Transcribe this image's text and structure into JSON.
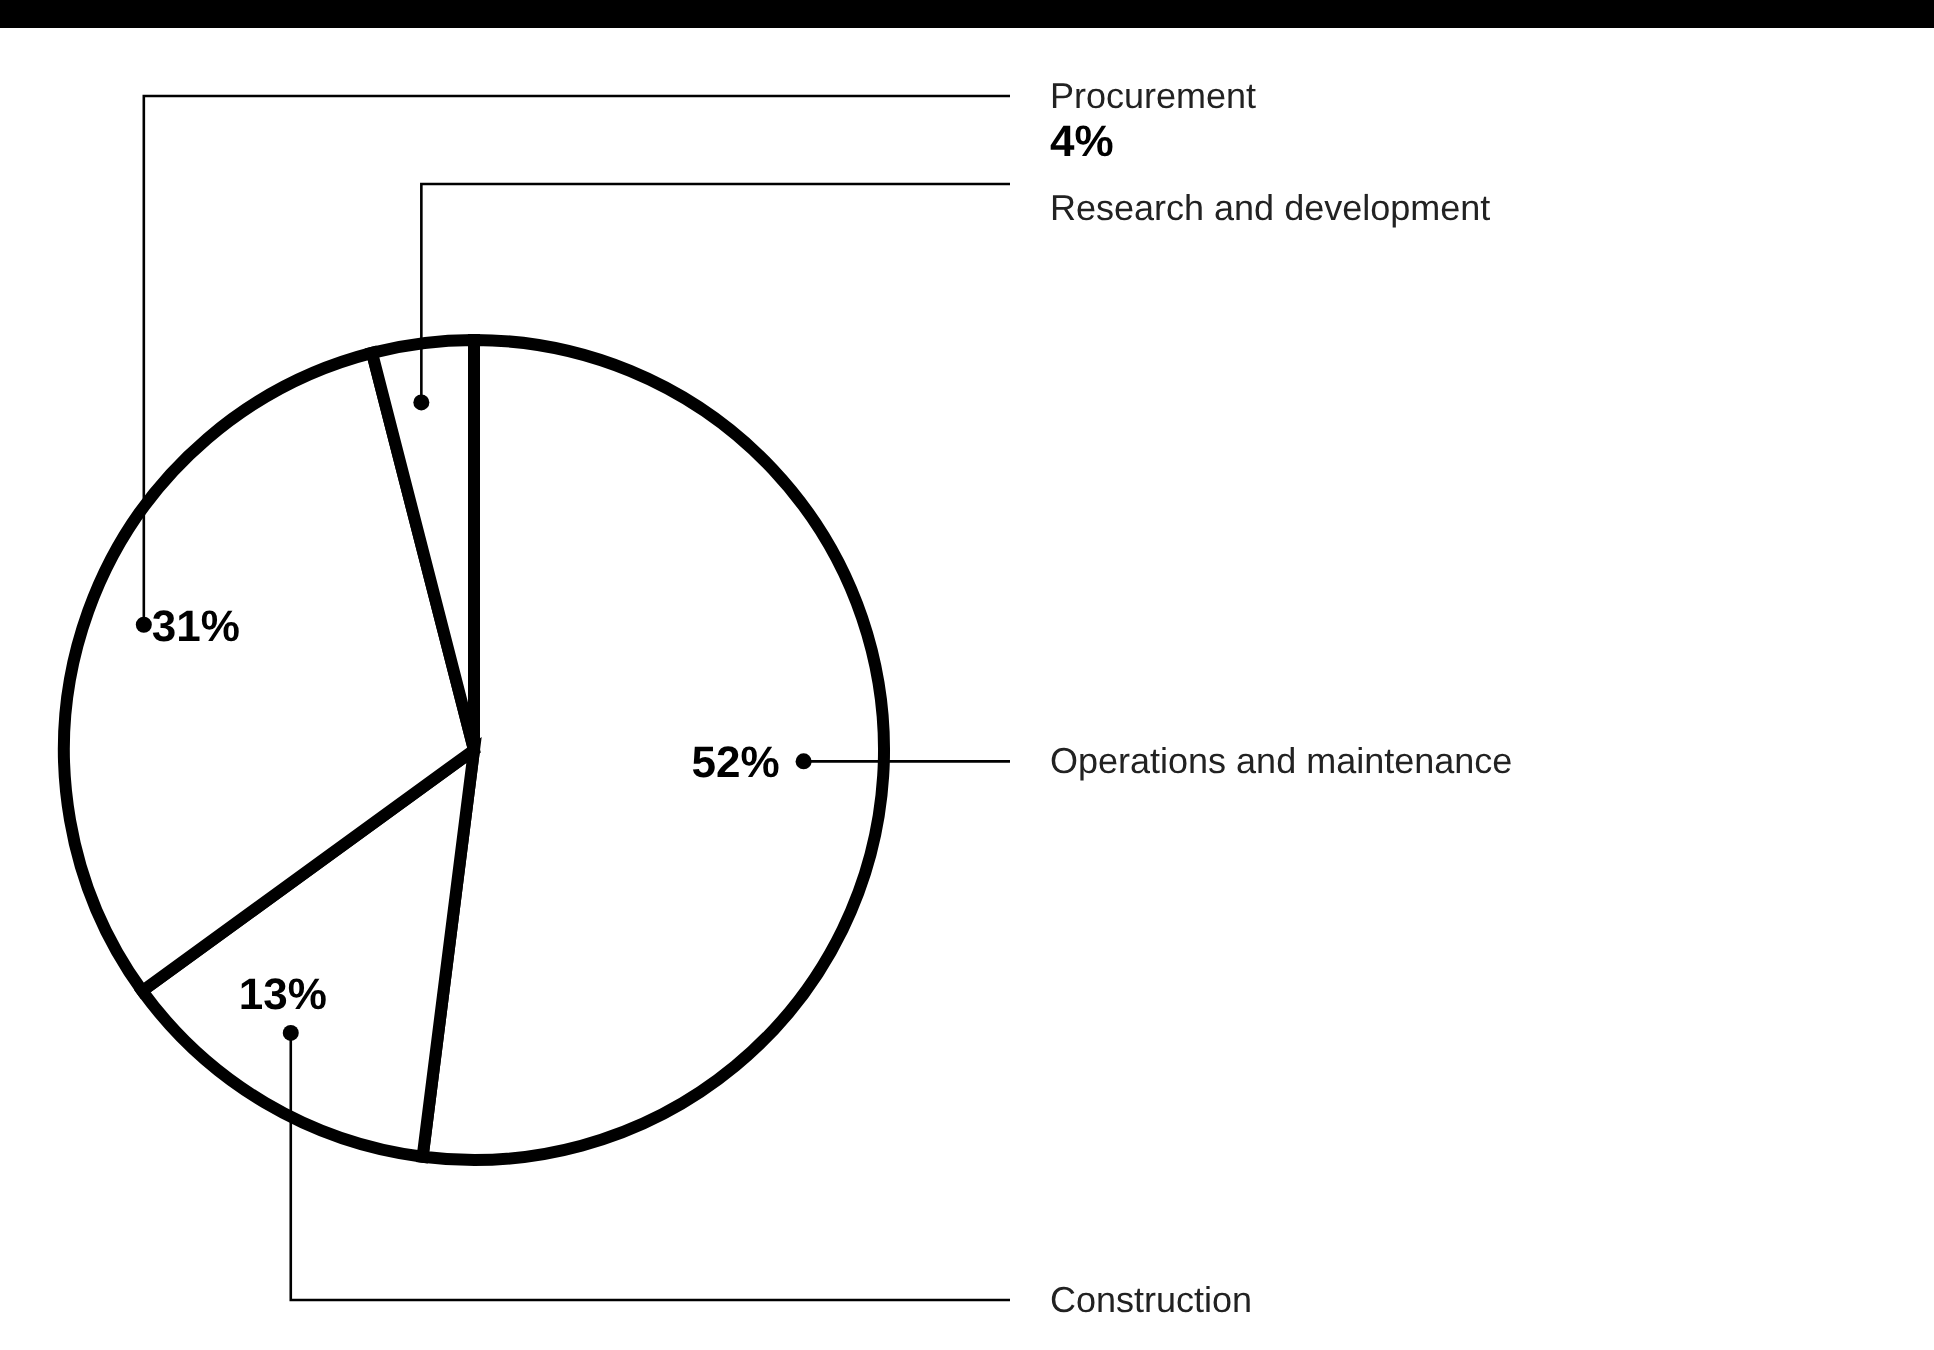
{
  "chart_data": {
    "type": "pie",
    "categories": [
      "Operations and maintenance",
      "Construction",
      "Procurement",
      "Research and development"
    ],
    "values": [
      52,
      13,
      31,
      4
    ],
    "colors": [
      "#ffffff",
      "#ffffff",
      "#ffffff",
      "#ffffff"
    ],
    "value_labels": [
      "52%",
      "13%",
      "31%",
      "4%"
    ],
    "legend": false
  }
}
